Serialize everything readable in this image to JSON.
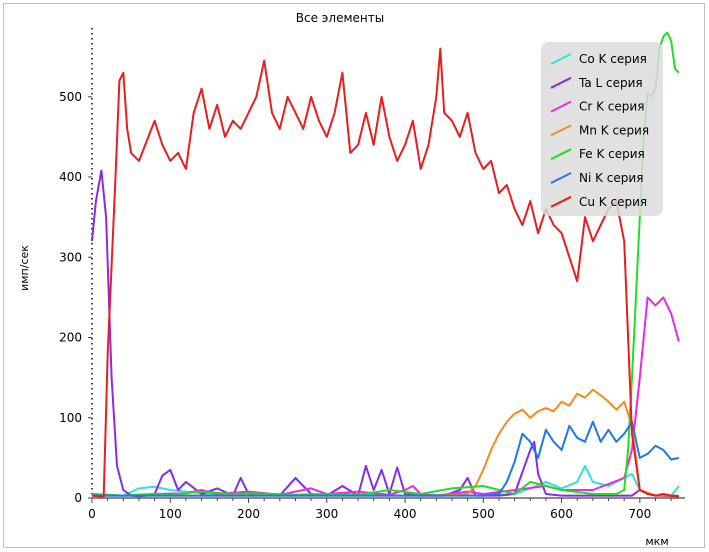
{
  "chart_data": {
    "type": "line",
    "title": "Все элементы",
    "xlabel": "мкм",
    "ylabel": "имп/сек",
    "xlim": [
      0,
      750
    ],
    "ylim": [
      0,
      600
    ],
    "xticks": [
      0,
      100,
      200,
      300,
      400,
      500,
      600,
      700
    ],
    "yticks": [
      0,
      100,
      200,
      300,
      400,
      500
    ],
    "grid": false,
    "legend_position": "top-right",
    "series": [
      {
        "name": "Co K серия",
        "color": "#33dde6",
        "x": [
          0,
          40,
          60,
          80,
          100,
          150,
          200,
          250,
          300,
          350,
          400,
          450,
          500,
          540,
          560,
          580,
          600,
          620,
          630,
          640,
          660,
          680,
          690,
          700,
          720,
          740,
          750
        ],
        "y": [
          3,
          3,
          12,
          14,
          10,
          5,
          3,
          4,
          3,
          4,
          3,
          4,
          3,
          5,
          12,
          20,
          12,
          20,
          40,
          20,
          15,
          25,
          30,
          10,
          3,
          3,
          15
        ]
      },
      {
        "name": "Ta L серия",
        "color": "#8a2be2",
        "x": [
          0,
          5,
          12,
          18,
          25,
          32,
          40,
          50,
          60,
          70,
          80,
          90,
          100,
          110,
          120,
          140,
          160,
          180,
          190,
          200,
          240,
          260,
          280,
          300,
          320,
          340,
          350,
          360,
          370,
          380,
          390,
          400,
          420,
          450,
          470,
          480,
          490,
          500,
          520,
          540,
          560,
          565,
          570,
          580,
          600,
          650,
          690,
          700,
          720,
          750
        ],
        "y": [
          320,
          370,
          408,
          350,
          150,
          40,
          10,
          3,
          2,
          3,
          5,
          28,
          35,
          10,
          20,
          5,
          12,
          3,
          25,
          5,
          3,
          25,
          5,
          3,
          15,
          3,
          40,
          10,
          35,
          5,
          38,
          5,
          3,
          3,
          10,
          25,
          3,
          3,
          3,
          5,
          60,
          70,
          30,
          5,
          3,
          3,
          3,
          10,
          3,
          2
        ]
      },
      {
        "name": "Cr K серия",
        "color": "#e62ae6",
        "x": [
          0,
          40,
          80,
          120,
          140,
          160,
          200,
          240,
          280,
          300,
          340,
          380,
          400,
          410,
          420,
          440,
          480,
          500,
          540,
          580,
          600,
          640,
          680,
          690,
          700,
          710,
          720,
          730,
          740,
          750
        ],
        "y": [
          5,
          3,
          5,
          6,
          10,
          5,
          8,
          4,
          12,
          5,
          8,
          4,
          10,
          15,
          5,
          3,
          8,
          5,
          10,
          15,
          10,
          10,
          25,
          60,
          150,
          250,
          240,
          250,
          230,
          195
        ]
      },
      {
        "name": "Mn K серия",
        "color": "#f58a1f",
        "x": [
          0,
          440,
          480,
          490,
          500,
          510,
          520,
          530,
          540,
          550,
          560,
          570,
          580,
          590,
          600,
          610,
          620,
          630,
          640,
          650,
          660,
          670,
          680,
          690,
          700,
          720,
          750
        ],
        "y": [
          3,
          3,
          5,
          15,
          35,
          60,
          80,
          95,
          105,
          110,
          100,
          108,
          112,
          108,
          120,
          115,
          130,
          125,
          135,
          128,
          120,
          110,
          120,
          90,
          10,
          3,
          3
        ]
      },
      {
        "name": "Fe K серия",
        "color": "#22dd22",
        "x": [
          0,
          40,
          60,
          80,
          100,
          140,
          180,
          200,
          260,
          300,
          340,
          380,
          420,
          460,
          500,
          540,
          560,
          600,
          640,
          670,
          680,
          685,
          690,
          695,
          700,
          705,
          710,
          715,
          720,
          725,
          730,
          735,
          740,
          745,
          750
        ],
        "y": [
          5,
          3,
          4,
          5,
          4,
          8,
          5,
          6,
          4,
          5,
          4,
          10,
          5,
          12,
          15,
          5,
          20,
          10,
          5,
          5,
          10,
          60,
          150,
          250,
          350,
          450,
          505,
          500,
          510,
          560,
          575,
          580,
          570,
          535,
          530
        ]
      },
      {
        "name": "Ni K серия",
        "color": "#1e78e6",
        "x": [
          0,
          500,
          520,
          530,
          540,
          550,
          560,
          570,
          580,
          590,
          600,
          610,
          620,
          630,
          640,
          650,
          660,
          670,
          680,
          690,
          700,
          710,
          720,
          730,
          740,
          750
        ],
        "y": [
          3,
          3,
          5,
          20,
          45,
          80,
          70,
          50,
          85,
          70,
          60,
          90,
          75,
          70,
          95,
          70,
          85,
          70,
          80,
          95,
          50,
          55,
          65,
          60,
          48,
          50
        ]
      },
      {
        "name": "Cu K серия",
        "color": "#e61e1e",
        "x": [
          0,
          10,
          15,
          20,
          30,
          35,
          40,
          45,
          50,
          60,
          70,
          80,
          90,
          100,
          110,
          120,
          130,
          140,
          150,
          160,
          170,
          180,
          190,
          200,
          210,
          220,
          230,
          240,
          250,
          260,
          270,
          280,
          290,
          300,
          310,
          320,
          330,
          340,
          350,
          360,
          370,
          380,
          390,
          400,
          410,
          420,
          430,
          440,
          445,
          450,
          460,
          470,
          480,
          490,
          500,
          510,
          520,
          530,
          540,
          550,
          560,
          570,
          580,
          590,
          600,
          610,
          620,
          630,
          640,
          650,
          660,
          670,
          680,
          690,
          700,
          710,
          720,
          730,
          740,
          750
        ],
        "y": [
          3,
          2,
          2,
          180,
          400,
          520,
          530,
          460,
          430,
          420,
          445,
          470,
          440,
          420,
          430,
          410,
          480,
          510,
          460,
          490,
          450,
          470,
          460,
          480,
          500,
          545,
          480,
          460,
          500,
          480,
          460,
          500,
          470,
          450,
          480,
          530,
          430,
          440,
          480,
          440,
          500,
          450,
          420,
          440,
          470,
          410,
          440,
          500,
          560,
          480,
          470,
          450,
          480,
          430,
          410,
          420,
          380,
          390,
          360,
          340,
          370,
          330,
          360,
          340,
          330,
          300,
          270,
          350,
          320,
          340,
          360,
          370,
          320,
          80,
          10,
          5,
          3,
          5,
          3,
          2
        ]
      }
    ]
  }
}
